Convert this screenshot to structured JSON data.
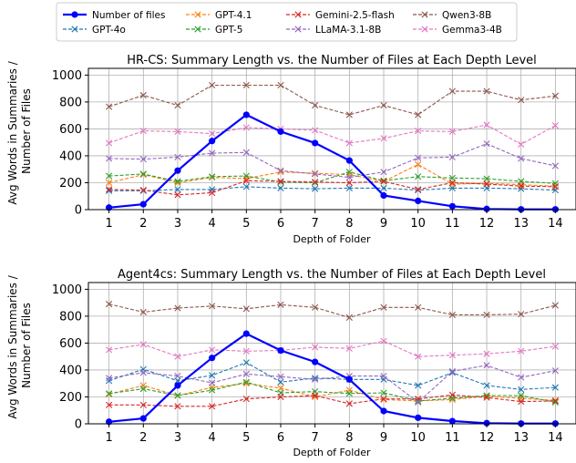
{
  "legend": {
    "entries": [
      {
        "name": "Number of files",
        "color": "#0000ff",
        "style": "solid-dot"
      },
      {
        "name": "GPT-4o",
        "color": "#1f77b4",
        "style": "dashed-x"
      },
      {
        "name": "GPT-4.1",
        "color": "#ff7f0e",
        "style": "dashed-x"
      },
      {
        "name": "GPT-5",
        "color": "#2ca02c",
        "style": "dashed-x"
      },
      {
        "name": "Gemini-2.5-flash",
        "color": "#d62728",
        "style": "dashed-x"
      },
      {
        "name": "LLaMA-3.1-8B",
        "color": "#9467bd",
        "style": "dashed-x"
      },
      {
        "name": "Qwen3-8B",
        "color": "#8c564b",
        "style": "dashed-x"
      },
      {
        "name": "Gemma3-4B",
        "color": "#e377c2",
        "style": "dashed-x"
      }
    ]
  },
  "chart_data": [
    {
      "type": "line",
      "title": "HR-CS: Summary Length vs. the Number of Files at Each Depth Level",
      "xlabel": "Depth of Folder",
      "ylabel": "Avg Words in Summaries /\nNumber of Files",
      "ylim": [
        0,
        1050
      ],
      "yticks": [
        0,
        200,
        400,
        600,
        800,
        1000
      ],
      "x": [
        1,
        2,
        3,
        4,
        5,
        6,
        7,
        8,
        9,
        10,
        11,
        12,
        13,
        14
      ],
      "grid": true,
      "series": [
        {
          "name": "Number of files",
          "color": "#0000ff",
          "values": [
            15,
            40,
            290,
            510,
            705,
            580,
            495,
            365,
            105,
            65,
            25,
            5,
            2,
            2
          ]
        },
        {
          "name": "GPT-4o",
          "color": "#1f77b4",
          "values": [
            140,
            140,
            150,
            150,
            170,
            160,
            155,
            160,
            160,
            145,
            160,
            160,
            155,
            145
          ]
        },
        {
          "name": "GPT-4.1",
          "color": "#ff7f0e",
          "values": [
            200,
            260,
            200,
            240,
            230,
            280,
            270,
            260,
            210,
            335,
            190,
            195,
            185,
            175
          ]
        },
        {
          "name": "GPT-5",
          "color": "#2ca02c",
          "values": [
            250,
            265,
            210,
            245,
            250,
            205,
            200,
            280,
            215,
            245,
            235,
            230,
            210,
            195
          ]
        },
        {
          "name": "Gemini-2.5-flash",
          "color": "#d62728",
          "values": [
            150,
            145,
            110,
            125,
            215,
            210,
            205,
            200,
            210,
            150,
            200,
            190,
            175,
            170
          ]
        },
        {
          "name": "LLaMA-3.1-8B",
          "color": "#9467bd",
          "values": [
            380,
            375,
            390,
            420,
            425,
            290,
            265,
            240,
            280,
            385,
            390,
            490,
            380,
            325
          ]
        },
        {
          "name": "Qwen3-8B",
          "color": "#8c564b",
          "values": [
            765,
            850,
            775,
            925,
            925,
            925,
            775,
            705,
            775,
            705,
            880,
            880,
            815,
            845
          ]
        },
        {
          "name": "Gemma3-4B",
          "color": "#e377c2",
          "values": [
            495,
            585,
            580,
            565,
            610,
            600,
            590,
            495,
            530,
            585,
            580,
            630,
            485,
            625
          ]
        }
      ]
    },
    {
      "type": "line",
      "title": "Agent4cs: Summary Length vs. the Number of Files at Each Depth Level",
      "xlabel": "Depth of Folder",
      "ylabel": "Avg Words in Summaries /\nNumber of Files",
      "ylim": [
        0,
        1050
      ],
      "yticks": [
        0,
        200,
        400,
        600,
        800,
        1000
      ],
      "x": [
        1,
        2,
        3,
        4,
        5,
        6,
        7,
        8,
        9,
        10,
        11,
        12,
        13,
        14
      ],
      "grid": true,
      "series": [
        {
          "name": "Number of files",
          "color": "#0000ff",
          "values": [
            15,
            40,
            285,
            490,
            670,
            545,
            460,
            330,
            95,
            45,
            20,
            5,
            2,
            2
          ]
        },
        {
          "name": "GPT-4o",
          "color": "#1f77b4",
          "values": [
            320,
            405,
            320,
            360,
            455,
            310,
            340,
            330,
            330,
            285,
            380,
            285,
            255,
            270
          ]
        },
        {
          "name": "GPT-4.1",
          "color": "#ff7f0e",
          "values": [
            220,
            285,
            210,
            270,
            300,
            265,
            200,
            250,
            180,
            170,
            180,
            205,
            190,
            175
          ]
        },
        {
          "name": "GPT-5",
          "color": "#2ca02c",
          "values": [
            225,
            260,
            210,
            250,
            310,
            230,
            240,
            225,
            230,
            170,
            190,
            210,
            210,
            160
          ]
        },
        {
          "name": "Gemini-2.5-flash",
          "color": "#d62728",
          "values": [
            140,
            140,
            130,
            130,
            185,
            200,
            210,
            150,
            185,
            185,
            215,
            195,
            165,
            170
          ]
        },
        {
          "name": "LLaMA-3.1-8B",
          "color": "#9467bd",
          "values": [
            340,
            380,
            355,
            305,
            370,
            350,
            330,
            355,
            355,
            160,
            390,
            435,
            345,
            395
          ]
        },
        {
          "name": "Qwen3-8B",
          "color": "#8c564b",
          "values": [
            890,
            830,
            860,
            875,
            855,
            885,
            865,
            790,
            865,
            865,
            810,
            810,
            815,
            880
          ]
        },
        {
          "name": "Gemma3-4B",
          "color": "#e377c2",
          "values": [
            550,
            590,
            500,
            550,
            540,
            545,
            570,
            560,
            615,
            500,
            510,
            520,
            540,
            575
          ]
        }
      ]
    }
  ]
}
